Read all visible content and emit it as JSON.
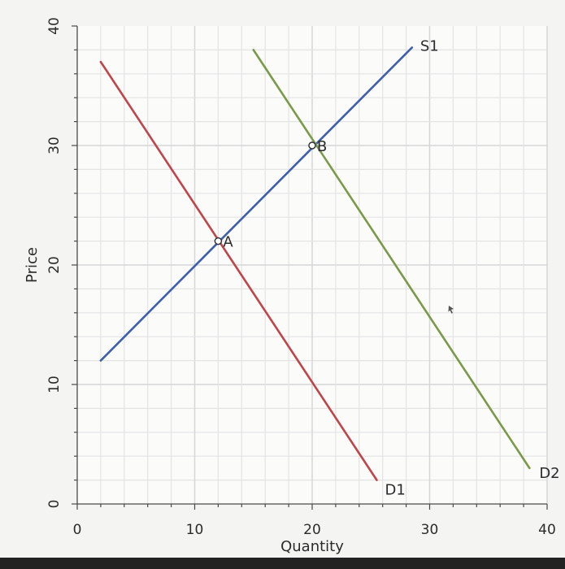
{
  "chart_data": {
    "type": "line",
    "title": "",
    "xlabel": "Quantity",
    "ylabel": "Price",
    "xlim": [
      0,
      40
    ],
    "ylim": [
      0,
      40
    ],
    "x_ticks": [
      "0",
      "10",
      "20",
      "30",
      "40"
    ],
    "y_ticks": [
      "0",
      "10",
      "20",
      "30",
      "40"
    ],
    "grid": true,
    "series": [
      {
        "name": "S1",
        "color": "#3f5fae",
        "points": [
          [
            2,
            12
          ],
          [
            28.5,
            38.2
          ]
        ]
      },
      {
        "name": "D1",
        "color": "#c0454a",
        "points": [
          [
            2,
            37
          ],
          [
            25.5,
            2
          ]
        ]
      },
      {
        "name": "D2",
        "color": "#7a9a4a",
        "points": [
          [
            15,
            38
          ],
          [
            38.5,
            3
          ]
        ]
      }
    ],
    "annotations": [
      {
        "label": "A",
        "x": 12,
        "y": 22
      },
      {
        "label": "B",
        "x": 20,
        "y": 30
      }
    ]
  }
}
